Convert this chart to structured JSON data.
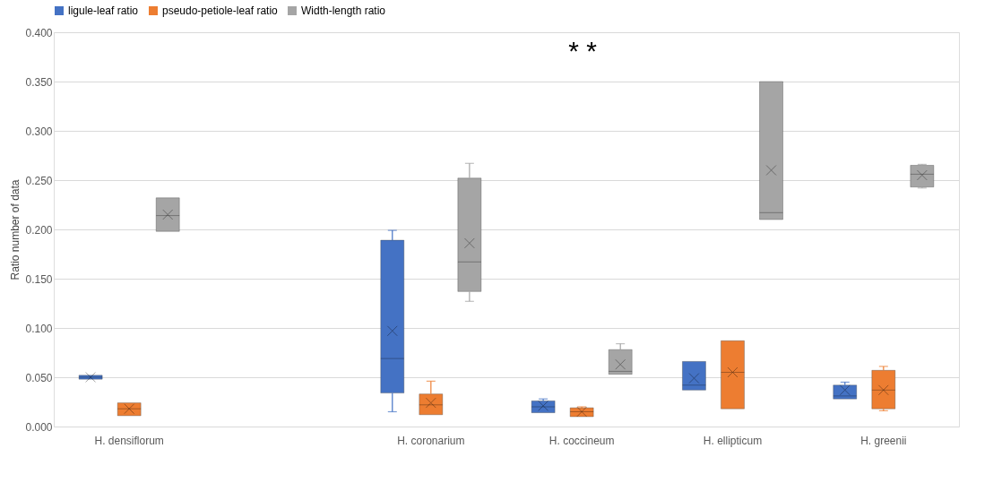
{
  "chart_data": {
    "type": "box",
    "ylabel": "Ratio number of data",
    "categories": [
      "H. densiflorum",
      null,
      "H. coronarium",
      "H. coccineum",
      "H. ellipticum",
      "H. greenii"
    ],
    "ylim": [
      0,
      0.4
    ],
    "yticks": [
      {
        "value": 0,
        "label": "0.000"
      },
      {
        "value": 0.05,
        "label": "0.050"
      },
      {
        "value": 0.1,
        "label": "0.100"
      },
      {
        "value": 0.15,
        "label": "0.150"
      },
      {
        "value": 0.2,
        "label": "0.200"
      },
      {
        "value": 0.25,
        "label": "0.250"
      },
      {
        "value": 0.3,
        "label": "0.300"
      },
      {
        "value": 0.35,
        "label": "0.350"
      },
      {
        "value": 0.4,
        "label": "0.400"
      }
    ],
    "grid": "y",
    "legend": "top",
    "annotations": [
      "* *"
    ],
    "series": [
      {
        "name": "ligule-leaf ratio",
        "color": "#4472c4",
        "boxes": [
          {
            "low": 0.048,
            "q1": 0.048,
            "median": 0.05,
            "q3": 0.052,
            "high": 0.052,
            "mean": 0.05
          },
          null,
          {
            "low": 0.015,
            "q1": 0.034,
            "median": 0.069,
            "q3": 0.189,
            "high": 0.199,
            "mean": 0.097
          },
          {
            "low": 0.014,
            "q1": 0.014,
            "median": 0.02,
            "q3": 0.026,
            "high": 0.028,
            "mean": 0.021
          },
          {
            "low": 0.037,
            "q1": 0.037,
            "median": 0.042,
            "q3": 0.066,
            "high": 0.066,
            "mean": 0.049
          },
          {
            "low": 0.028,
            "q1": 0.028,
            "median": 0.031,
            "q3": 0.042,
            "high": 0.045,
            "mean": 0.037
          }
        ]
      },
      {
        "name": "pseudo-petiole-leaf ratio",
        "color": "#ed7d31",
        "boxes": [
          {
            "low": 0.011,
            "q1": 0.011,
            "median": 0.018,
            "q3": 0.024,
            "high": 0.024,
            "mean": 0.018
          },
          null,
          {
            "low": 0.012,
            "q1": 0.012,
            "median": 0.022,
            "q3": 0.033,
            "high": 0.046,
            "mean": 0.024
          },
          {
            "low": 0.01,
            "q1": 0.01,
            "median": 0.015,
            "q3": 0.019,
            "high": 0.02,
            "mean": 0.015
          },
          {
            "low": 0.018,
            "q1": 0.018,
            "median": 0.055,
            "q3": 0.087,
            "high": 0.087,
            "mean": 0.055
          },
          {
            "low": 0.016,
            "q1": 0.018,
            "median": 0.037,
            "q3": 0.057,
            "high": 0.061,
            "mean": 0.037
          }
        ]
      },
      {
        "name": "Width-length ratio",
        "color": "#a5a5a5",
        "boxes": [
          {
            "low": 0.198,
            "q1": 0.198,
            "median": 0.214,
            "q3": 0.232,
            "high": 0.232,
            "mean": 0.215
          },
          null,
          {
            "low": 0.127,
            "q1": 0.137,
            "median": 0.167,
            "q3": 0.252,
            "high": 0.267,
            "mean": 0.186
          },
          {
            "low": 0.053,
            "q1": 0.053,
            "median": 0.056,
            "q3": 0.078,
            "high": 0.084,
            "mean": 0.063
          },
          {
            "low": 0.21,
            "q1": 0.21,
            "median": 0.217,
            "q3": 0.35,
            "high": 0.35,
            "mean": 0.26
          },
          {
            "low": 0.242,
            "q1": 0.243,
            "median": 0.256,
            "q3": 0.265,
            "high": 0.266,
            "mean": 0.255
          }
        ]
      }
    ]
  }
}
